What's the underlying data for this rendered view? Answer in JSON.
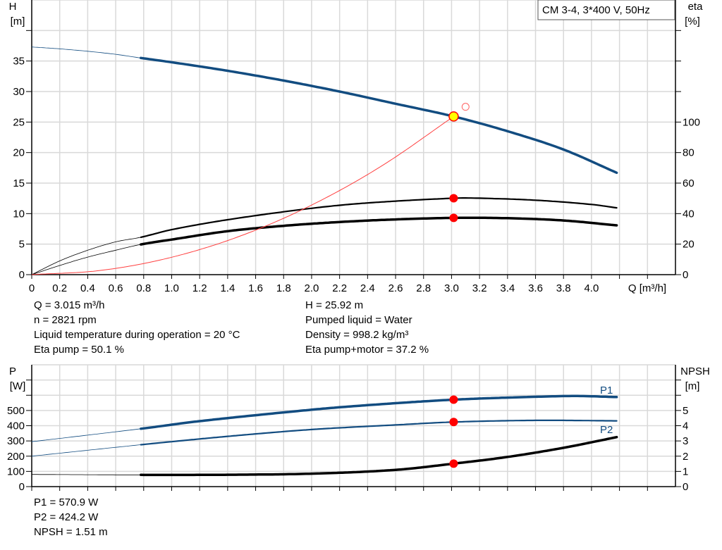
{
  "legend_box": "CM 3-4, 3*400 V, 50Hz",
  "chart_data": [
    {
      "type": "line",
      "xlabel": "Q [m³/h]",
      "x_ticks": [
        "0",
        "0.2",
        "0.4",
        "0.6",
        "0.8",
        "1.0",
        "1.2",
        "1.4",
        "1.6",
        "1.8",
        "2.0",
        "2.2",
        "2.4",
        "2.6",
        "2.8",
        "3.0",
        "3.2",
        "3.4",
        "3.6",
        "3.8",
        "4.0"
      ],
      "xlim": [
        0,
        4.6
      ],
      "ylabel_left": [
        "H",
        "[m]"
      ],
      "ylim_left": [
        0,
        45
      ],
      "yticks_left": [
        0,
        5,
        10,
        15,
        20,
        25,
        30,
        35
      ],
      "ylabel_right": [
        "eta",
        "[%]"
      ],
      "ylim_right": [
        0,
        180
      ],
      "yticks_right": [
        0,
        20,
        40,
        60,
        80,
        100
      ],
      "grid": true,
      "operating_range_start": 0.78,
      "series": [
        {
          "key": "H",
          "axis": "left",
          "color": "#124c80",
          "x": [
            0,
            0.2,
            0.4,
            0.6,
            0.78,
            1.0,
            1.4,
            1.8,
            2.2,
            2.6,
            3.015,
            3.4,
            3.8,
            4.18
          ],
          "y": [
            37.3,
            37.0,
            36.6,
            36.1,
            35.5,
            34.8,
            33.4,
            31.8,
            30.0,
            28.0,
            25.92,
            23.5,
            20.5,
            16.7
          ]
        },
        {
          "key": "eta_pump",
          "axis": "right",
          "color": "#000000",
          "x": [
            0,
            0.2,
            0.4,
            0.6,
            0.78,
            1.0,
            1.4,
            2.0,
            2.4,
            3.015,
            3.2,
            3.6,
            4.0,
            4.18
          ],
          "y": [
            0,
            9,
            16,
            21.5,
            24.5,
            29.5,
            36,
            43.5,
            47,
            50.1,
            50.1,
            48.8,
            46,
            43.8
          ]
        },
        {
          "key": "eta_pump_motor",
          "axis": "right",
          "color": "#000000",
          "x": [
            0,
            0.2,
            0.4,
            0.6,
            0.78,
            1.0,
            1.4,
            1.8,
            2.2,
            2.6,
            3.015,
            3.4,
            3.8,
            4.18
          ],
          "y": [
            0,
            6,
            11.5,
            16,
            19.8,
            23,
            28.5,
            32,
            34.5,
            36.2,
            37.2,
            37,
            35.5,
            32.3
          ]
        },
        {
          "key": "system_curve",
          "axis": "left",
          "color": "#ff4040",
          "x": [
            0,
            0.5,
            1.0,
            1.5,
            2.0,
            2.5,
            3.015
          ],
          "y": [
            0,
            0.71,
            2.85,
            6.41,
            11.4,
            17.8,
            25.92
          ]
        }
      ],
      "duty_point": {
        "Q": 3.015,
        "H": 25.92,
        "eta_pump": 50.1,
        "eta_pump_motor": 37.2
      },
      "requested_point": {
        "Q": 3.1,
        "H": 27.5
      }
    },
    {
      "type": "line",
      "xlim": [
        0,
        4.6
      ],
      "ylabel_left": [
        "P",
        "[W]"
      ],
      "ylim_left": [
        0,
        800
      ],
      "yticks_left": [
        0,
        100,
        200,
        300,
        400,
        500
      ],
      "ylabel_right": [
        "NPSH",
        "[m]"
      ],
      "ylim_right": [
        0,
        8
      ],
      "yticks_right": [
        0,
        1,
        2,
        3,
        4,
        5
      ],
      "grid": true,
      "operating_range_start": 0.78,
      "series": [
        {
          "key": "P1",
          "name": "P1",
          "axis": "left",
          "color": "#124c80",
          "x": [
            0,
            0.78,
            1.2,
            2.0,
            2.4,
            3.015,
            3.6,
            3.9,
            4.18
          ],
          "y": [
            295,
            380,
            430,
            505,
            535,
            570.9,
            590,
            595,
            588
          ]
        },
        {
          "key": "P2",
          "name": "P2",
          "axis": "left",
          "color": "#124c80",
          "x": [
            0,
            0.78,
            1.4,
            2.0,
            2.6,
            3.015,
            3.6,
            4.18
          ],
          "y": [
            200,
            275,
            330,
            375,
            405,
            424.2,
            435,
            432
          ]
        },
        {
          "key": "NPSH",
          "axis": "right",
          "color": "#000000",
          "x": [
            0,
            0.78,
            1.4,
            2.0,
            2.6,
            3.015,
            3.4,
            3.8,
            4.18
          ],
          "y": [
            0.8,
            0.77,
            0.78,
            0.85,
            1.1,
            1.51,
            1.95,
            2.55,
            3.25
          ]
        }
      ],
      "duty_point": {
        "Q": 3.015,
        "P1": 570.9,
        "P2": 424.2,
        "NPSH": 1.51
      }
    }
  ],
  "info_top_left": [
    "Q = 3.015 m³/h",
    "n = 2821 rpm",
    "Liquid temperature during operation = 20 °C",
    "Eta pump = 50.1 %"
  ],
  "info_top_right": [
    "H = 25.92 m",
    "Pumped liquid = Water",
    "Density = 998.2 kg/m³",
    "Eta pump+motor = 37.2 %"
  ],
  "info_bottom": [
    "P1 = 570.9 W",
    "P2 = 424.2 W",
    "NPSH = 1.51 m"
  ]
}
